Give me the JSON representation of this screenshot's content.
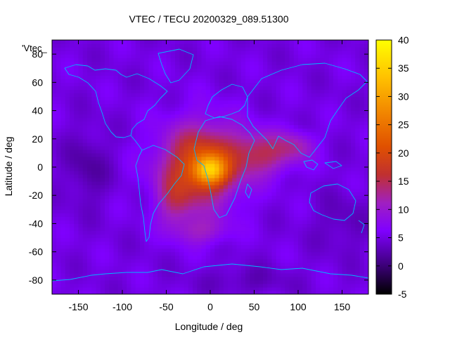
{
  "chart_data": {
    "type": "heatmap",
    "title": "VTEC / TECU 20200329_089.51300",
    "xlabel": "Longitude / deg",
    "ylabel": "Latitude / deg",
    "xlim": [
      -180,
      180
    ],
    "ylim": [
      -90,
      90
    ],
    "x_ticks": [
      -150,
      -100,
      -50,
      0,
      50,
      100,
      150
    ],
    "x_tick_labels": [
      "-150",
      "-100",
      "-50",
      "0",
      "50",
      "100",
      "150"
    ],
    "y_ticks": [
      -80,
      -60,
      -40,
      -20,
      0,
      20,
      40,
      60,
      80
    ],
    "y_tick_labels": [
      "-80",
      "-60",
      "-40",
      "-20",
      "0",
      "20",
      "40",
      "60",
      "80"
    ],
    "colorbar": {
      "range": [
        -5,
        40
      ],
      "ticks": [
        -5,
        0,
        5,
        10,
        15,
        20,
        25,
        30,
        35,
        40
      ],
      "tick_labels": [
        "-5",
        "0",
        "5",
        "10",
        "15",
        "20",
        "25",
        "30",
        "35",
        "40"
      ],
      "palette": [
        "#000000",
        "#400080",
        "#8000ff",
        "#a020c0",
        "#c03030",
        "#e05000",
        "#f08000",
        "#ffc000",
        "#ffff00"
      ]
    },
    "legend_label": "'Vtec_",
    "background_value": 5,
    "lon_step": 5,
    "lat_step": 2.5,
    "bumps": [
      {
        "lon": -10,
        "lat": 2,
        "slon": 45,
        "slat": 28,
        "amp": 16
      },
      {
        "lon": 0,
        "lat": -2,
        "slon": 18,
        "slat": 10,
        "amp": 16
      },
      {
        "lon": -40,
        "lat": -25,
        "slon": 20,
        "slat": 18,
        "amp": 6
      },
      {
        "lon": 60,
        "lat": 10,
        "slon": 35,
        "slat": 15,
        "amp": 9
      },
      {
        "lon": 100,
        "lat": 15,
        "slon": 20,
        "slat": 10,
        "amp": 5
      },
      {
        "lon": -10,
        "lat": -45,
        "slon": 30,
        "slat": 10,
        "amp": 5
      },
      {
        "lon": -140,
        "lat": 0,
        "slon": 25,
        "slat": 25,
        "amp": -3
      },
      {
        "lon": 150,
        "lat": -40,
        "slon": 30,
        "slat": 20,
        "amp": -2
      },
      {
        "lon": 40,
        "lat": -80,
        "slon": 50,
        "slat": 10,
        "amp": -2
      }
    ]
  }
}
